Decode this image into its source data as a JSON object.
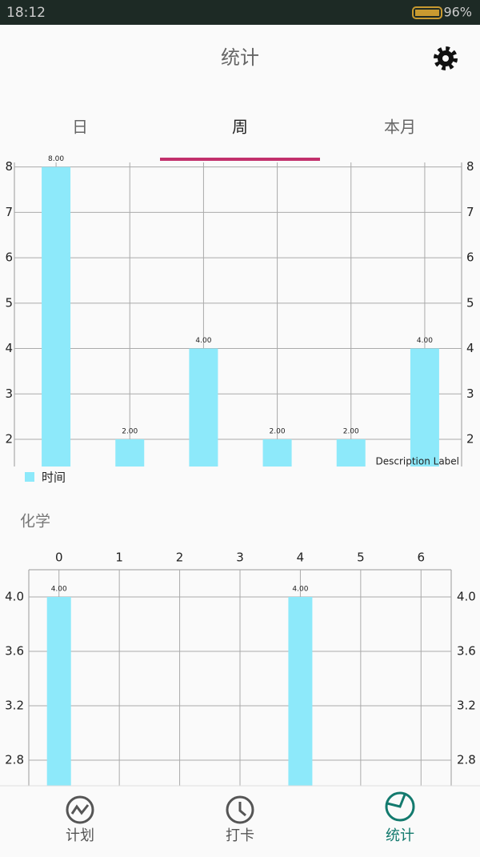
{
  "status_bar": {
    "time": "18:12",
    "battery": "96%"
  },
  "header": {
    "title": "统计"
  },
  "tabs": {
    "items": [
      "日",
      "周",
      "本月"
    ],
    "selected": 1
  },
  "chart_data": [
    {
      "type": "bar",
      "categories": [
        null,
        null,
        null,
        null,
        null,
        null
      ],
      "series": [
        {
          "name": "时间",
          "color": "#8de9fa",
          "values": [
            8,
            2,
            4,
            2,
            2,
            4
          ],
          "value_labels": [
            "8.00",
            "2.00",
            "4.00",
            "2.00",
            "2.00",
            "4.00"
          ]
        }
      ],
      "ylim": [
        1.4,
        8.1
      ],
      "yticks": [
        2,
        3,
        4,
        5,
        6,
        7,
        8
      ],
      "grid": true,
      "description": "Description Label"
    },
    {
      "type": "bar",
      "title": "化学",
      "x": [
        0,
        4
      ],
      "series": [
        {
          "color": "#8de9fa",
          "values": [
            4,
            4
          ],
          "value_labels": [
            "4.00",
            "4.00"
          ]
        }
      ],
      "xlim": [
        -0.5,
        6.5
      ],
      "xticks": [
        0,
        1,
        2,
        3,
        4,
        5,
        6
      ],
      "ylim": [
        2.6,
        4.2
      ],
      "yticks": [
        {
          "value": 4,
          "label": "4.0"
        },
        3.6,
        3.2,
        2.8
      ],
      "grid": true
    }
  ],
  "nav": {
    "items": [
      "计划",
      "打卡",
      "统计"
    ],
    "selected": 2
  }
}
